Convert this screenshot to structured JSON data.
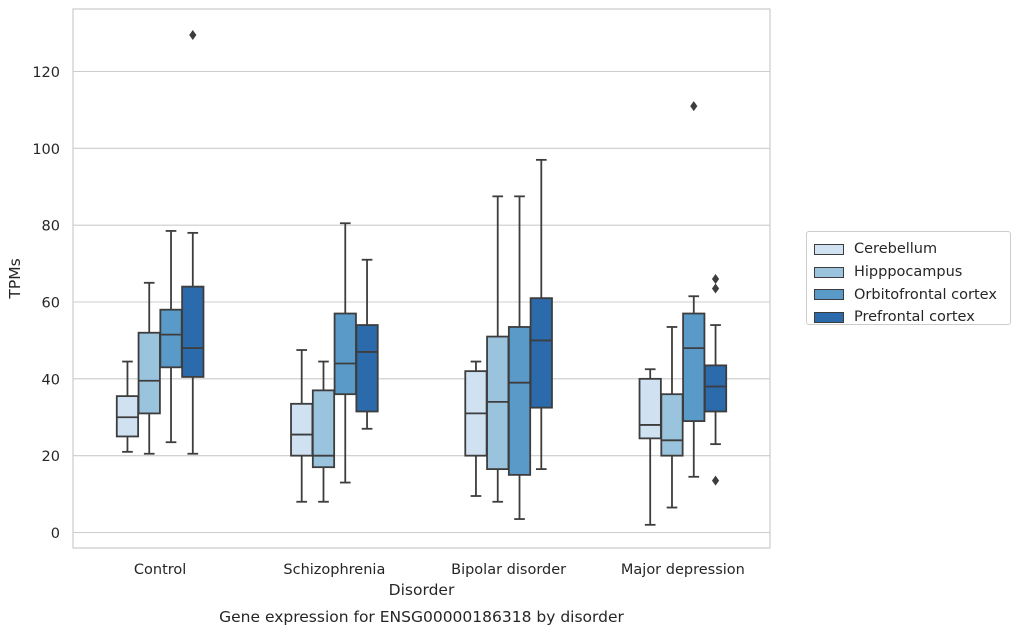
{
  "chart_data": {
    "type": "box",
    "title": "Gene expression for ENSG00000186318 by disorder",
    "xlabel": "Disorder",
    "ylabel": "TPMs",
    "ylim": [
      -4,
      136
    ],
    "yticks": [
      0,
      20,
      40,
      60,
      80,
      100,
      120
    ],
    "grid": true,
    "legend_position": "right",
    "categories": [
      "Control",
      "Schizophrenia",
      "Bipolar disorder",
      "Major depression"
    ],
    "series": [
      {
        "name": "Cerebellum",
        "color": "#d0e1f2",
        "boxes": [
          {
            "whisker_low": 21,
            "q1": 25,
            "median": 30,
            "q3": 35.5,
            "whisker_high": 44.5,
            "outliers": []
          },
          {
            "whisker_low": 8,
            "q1": 20,
            "median": 25.5,
            "q3": 33.5,
            "whisker_high": 47.5,
            "outliers": []
          },
          {
            "whisker_low": 9.5,
            "q1": 20,
            "median": 31,
            "q3": 42,
            "whisker_high": 44.5,
            "outliers": []
          },
          {
            "whisker_low": 2,
            "q1": 24.5,
            "median": 28,
            "q3": 40,
            "whisker_high": 42.5,
            "outliers": []
          }
        ]
      },
      {
        "name": "Hipppocampus",
        "color": "#9ac4de",
        "boxes": [
          {
            "whisker_low": 20.5,
            "q1": 31,
            "median": 39.5,
            "q3": 52,
            "whisker_high": 65,
            "outliers": []
          },
          {
            "whisker_low": 8,
            "q1": 17,
            "median": 20,
            "q3": 37,
            "whisker_high": 44.5,
            "outliers": []
          },
          {
            "whisker_low": 8,
            "q1": 16.5,
            "median": 34,
            "q3": 51,
            "whisker_high": 87.5,
            "outliers": []
          },
          {
            "whisker_low": 6.5,
            "q1": 20,
            "median": 24,
            "q3": 36,
            "whisker_high": 53.5,
            "outliers": []
          }
        ]
      },
      {
        "name": "Orbitofrontal cortex",
        "color": "#5a9ac9",
        "boxes": [
          {
            "whisker_low": 23.5,
            "q1": 43,
            "median": 51.5,
            "q3": 58,
            "whisker_high": 78.5,
            "outliers": []
          },
          {
            "whisker_low": 13,
            "q1": 36,
            "median": 44,
            "q3": 57,
            "whisker_high": 80.5,
            "outliers": []
          },
          {
            "whisker_low": 3.5,
            "q1": 15,
            "median": 39,
            "q3": 53.5,
            "whisker_high": 87.5,
            "outliers": []
          },
          {
            "whisker_low": 14.5,
            "q1": 29,
            "median": 48,
            "q3": 57,
            "whisker_high": 61.5,
            "outliers": [
              111
            ]
          }
        ]
      },
      {
        "name": "Prefrontal cortex",
        "color": "#2b6aab",
        "boxes": [
          {
            "whisker_low": 20.5,
            "q1": 40.5,
            "median": 48,
            "q3": 64,
            "whisker_high": 78,
            "outliers": [
              129.5
            ]
          },
          {
            "whisker_low": 27,
            "q1": 31.5,
            "median": 47,
            "q3": 54,
            "whisker_high": 71,
            "outliers": []
          },
          {
            "whisker_low": 16.5,
            "q1": 32.5,
            "median": 50,
            "q3": 61,
            "whisker_high": 97,
            "outliers": []
          },
          {
            "whisker_low": 23,
            "q1": 31.5,
            "median": 38,
            "q3": 43.5,
            "whisker_high": 54,
            "outliers": [
              66,
              63.5,
              13.5
            ]
          }
        ]
      }
    ]
  }
}
